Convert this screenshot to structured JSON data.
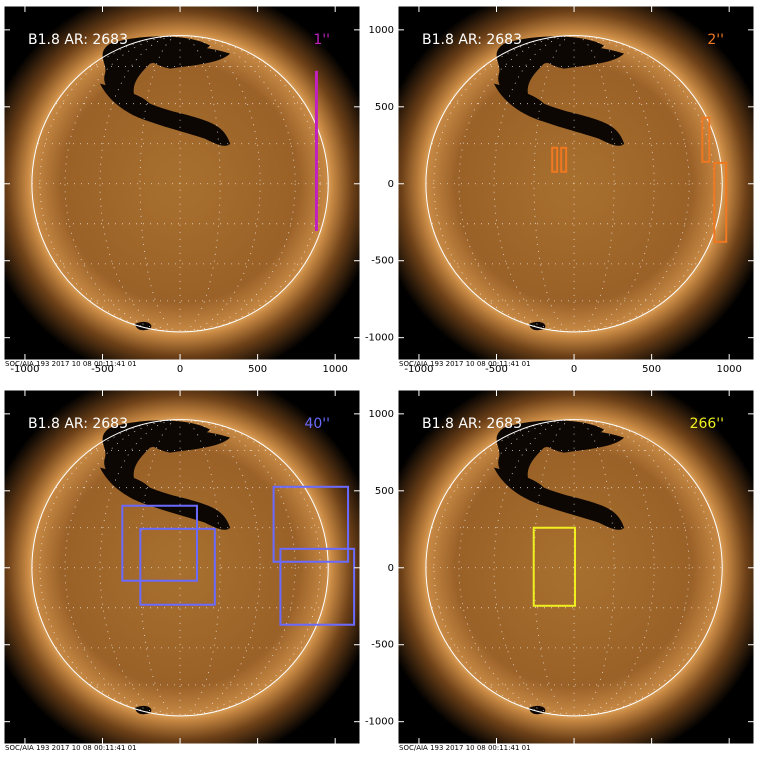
{
  "chart_data": [
    {
      "type": "image",
      "title": "B1.8 AR: 2683",
      "annotation": "1''",
      "color": "#c020c0",
      "footer": "SOC/AIA 193 2017 10 08 00:11:41 01",
      "xlim": [
        -1135,
        1160
      ],
      "ylim": [
        -1145,
        1155
      ],
      "xticks": [
        -1000,
        -500,
        0,
        500,
        1000
      ],
      "yticks": [
        -1000,
        -500,
        0,
        500,
        1000
      ],
      "boxes": [
        {
          "x": [
            876,
            880
          ],
          "y": [
            -300,
            727
          ]
        }
      ]
    },
    {
      "type": "image",
      "title": "B1.8 AR: 2683",
      "annotation": "2''",
      "color": "#f07820",
      "footer": "SOC/AIA 193 2017 10 08 00:11:41 01",
      "xlim": [
        -1135,
        1160
      ],
      "ylim": [
        -1145,
        1155
      ],
      "xticks": [
        -1000,
        -500,
        0,
        500,
        1000
      ],
      "yticks": [
        -1000,
        -500,
        0,
        500,
        1000
      ],
      "boxes": [
        {
          "x": [
            -141,
            -109
          ],
          "y": [
            78,
            234
          ]
        },
        {
          "x": [
            -83,
            -51
          ],
          "y": [
            78,
            234
          ]
        },
        {
          "x": [
            827,
            872
          ],
          "y": [
            143,
            429
          ]
        },
        {
          "x": [
            904,
            981
          ],
          "y": [
            -377,
            136
          ]
        }
      ]
    },
    {
      "type": "image",
      "title": "B1.8 AR: 2683",
      "annotation": "40''",
      "color": "#6a6aff",
      "footer": "SOC/AIA 193 2017 10 08 00:11:41 01",
      "xlim": [
        -1135,
        1160
      ],
      "ylim": [
        -1145,
        1155
      ],
      "xticks": [
        -1000,
        -500,
        0,
        500,
        1000
      ],
      "yticks": [
        -1000,
        -500,
        0,
        500,
        1000
      ],
      "boxes": [
        {
          "x": [
            -372,
            109
          ],
          "y": [
            -84,
            403
          ]
        },
        {
          "x": [
            -256,
            224
          ],
          "y": [
            -240,
            253
          ]
        },
        {
          "x": [
            603,
            1083
          ],
          "y": [
            39,
            526
          ]
        },
        {
          "x": [
            647,
            1122
          ],
          "y": [
            -370,
            123
          ]
        }
      ]
    },
    {
      "type": "image",
      "title": "B1.8 AR: 2683",
      "annotation": "266''",
      "color": "#f0f020",
      "footer": "SOC/AIA 193 2017 10 08 00:11:41 01",
      "xlim": [
        -1135,
        1160
      ],
      "ylim": [
        -1145,
        1155
      ],
      "xticks": [
        -1000,
        -500,
        0,
        500,
        1000
      ],
      "yticks": [
        -1000,
        -500,
        0,
        500,
        1000
      ],
      "boxes": [
        {
          "x": [
            -260,
            6
          ],
          "y": [
            -247,
            260
          ]
        }
      ]
    }
  ]
}
